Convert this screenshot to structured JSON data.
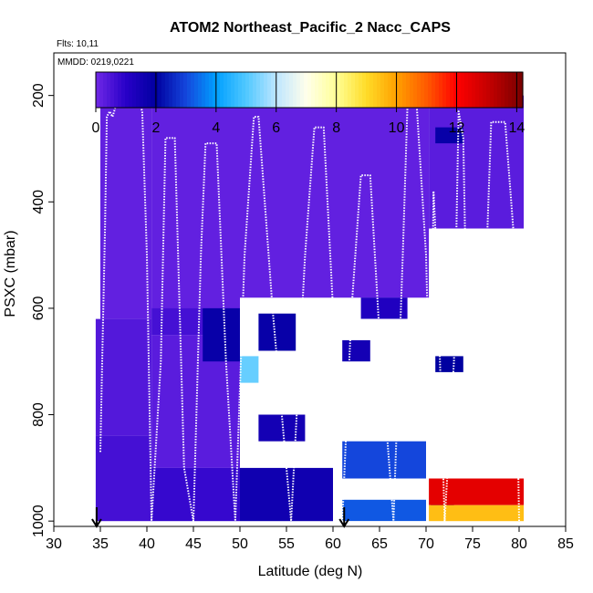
{
  "chart_data": {
    "type": "heatmap",
    "title": "ATOM2 Northeast_Pacific_2 Nacc_CAPS",
    "annotations": {
      "flights": "Flts: 10,11",
      "dates": "MMDD: 0219,0221"
    },
    "xlabel": "Latitude (deg N)",
    "ylabel": "PSXC (mbar)",
    "xlim": [
      30,
      85
    ],
    "ylim": [
      1010,
      120
    ],
    "x_ticks": [
      "30",
      "35",
      "40",
      "45",
      "50",
      "55",
      "60",
      "65",
      "70",
      "75",
      "80",
      "85"
    ],
    "y_ticks": [
      "200",
      "400",
      "600",
      "800",
      "1000"
    ],
    "colorbar": {
      "ticks": [
        "0",
        "2",
        "4",
        "6",
        "8",
        "10",
        "12",
        "14"
      ],
      "range": [
        0,
        14.2
      ]
    },
    "cells": [
      [
        34.5,
        40.5,
        170,
        200,
        0.3
      ],
      [
        35,
        40.5,
        200,
        620,
        0.2
      ],
      [
        34.5,
        40.5,
        620,
        840,
        0.4
      ],
      [
        34.5,
        40.5,
        840,
        1000,
        0.6
      ],
      [
        40.5,
        50,
        200,
        600,
        0.2
      ],
      [
        40.5,
        50,
        600,
        650,
        0.6
      ],
      [
        40.5,
        50,
        650,
        900,
        0.3
      ],
      [
        40.5,
        50,
        900,
        1000,
        0.8
      ],
      [
        50,
        60,
        200,
        580,
        0.2
      ],
      [
        50,
        52,
        690,
        740,
        5.2
      ],
      [
        46,
        50,
        600,
        700,
        1.8
      ],
      [
        52,
        56,
        610,
        680,
        1.8
      ],
      [
        52,
        57,
        800,
        850,
        1.5
      ],
      [
        50,
        60,
        900,
        1000,
        1.6
      ],
      [
        60,
        70.3,
        200,
        580,
        0.2
      ],
      [
        63,
        68,
        580,
        620,
        1.2
      ],
      [
        61,
        64,
        660,
        700,
        1.5
      ],
      [
        61,
        70,
        850,
        920,
        3.0
      ],
      [
        61,
        70,
        960,
        1000,
        3.2
      ],
      [
        70.3,
        80.5,
        200,
        450,
        0.3
      ],
      [
        71,
        74,
        260,
        290,
        1.8
      ],
      [
        71,
        74,
        690,
        720,
        2.0
      ],
      [
        70.5,
        73,
        920,
        980,
        1.5
      ],
      [
        70.3,
        80.5,
        920,
        970,
        12.5
      ],
      [
        70.3,
        80.5,
        970,
        1000,
        9.5
      ]
    ],
    "series": [
      {
        "name": "flight-track",
        "points": [
          [
            35.0,
            870
          ],
          [
            35.2,
            700
          ],
          [
            35.5,
            450
          ],
          [
            35.7,
            240
          ],
          [
            36.0,
            230
          ],
          [
            36.3,
            240
          ],
          [
            37.0,
            200
          ],
          [
            39.0,
            200
          ],
          [
            39.5,
            230
          ],
          [
            40.0,
            500
          ],
          [
            40.5,
            1000
          ],
          [
            41.5,
            700
          ],
          [
            42.0,
            280
          ],
          [
            43.0,
            280
          ],
          [
            44.0,
            900
          ],
          [
            45.0,
            1000
          ],
          [
            45.8,
            500
          ],
          [
            46.3,
            290
          ],
          [
            47.5,
            290
          ],
          [
            48.5,
            700
          ],
          [
            49.5,
            1000
          ],
          [
            50.5,
            500
          ],
          [
            51.5,
            240
          ],
          [
            52.0,
            240
          ],
          [
            53.5,
            600
          ],
          [
            55.5,
            1000
          ],
          [
            57.0,
            500
          ],
          [
            58.0,
            260
          ],
          [
            59.0,
            260
          ],
          [
            60.0,
            600
          ],
          [
            61.0,
            1000
          ],
          [
            62.0,
            600
          ],
          [
            63.0,
            350
          ],
          [
            64.0,
            350
          ],
          [
            65.0,
            650
          ],
          [
            66.5,
            1000
          ],
          [
            67.5,
            500
          ],
          [
            68.0,
            220
          ],
          [
            69.0,
            220
          ],
          [
            70.0,
            500
          ],
          [
            70.5,
            850
          ],
          [
            70.8,
            380
          ],
          [
            71.2,
            520
          ],
          [
            72.0,
            1000
          ],
          [
            73.0,
            700
          ],
          [
            73.5,
            230
          ],
          [
            74.0,
            280
          ],
          [
            74.5,
            750
          ],
          [
            75.5,
            820
          ],
          [
            76.5,
            500
          ],
          [
            77.0,
            250
          ],
          [
            78.5,
            250
          ],
          [
            79.5,
            480
          ],
          [
            80.0,
            1000
          ]
        ]
      }
    ],
    "arrows": [
      34.6,
      61.2
    ]
  }
}
